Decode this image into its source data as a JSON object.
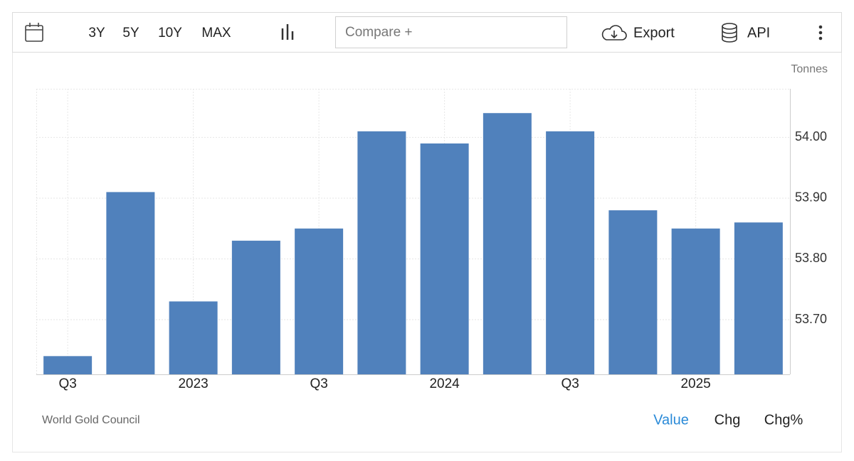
{
  "toolbar": {
    "ranges": [
      "3Y",
      "5Y",
      "10Y",
      "MAX"
    ],
    "compare": "Compare +",
    "export": "Export",
    "api": "API"
  },
  "chart_data": {
    "type": "bar",
    "unit": "Tonnes",
    "categories": [
      "Q3",
      null,
      "2023",
      null,
      "Q3",
      null,
      "2024",
      null,
      "Q3",
      null,
      "2025",
      null
    ],
    "values": [
      53.64,
      53.91,
      53.73,
      53.83,
      53.85,
      54.01,
      53.99,
      54.04,
      54.01,
      53.88,
      53.85,
      53.86
    ],
    "color": "#5081bc",
    "ylim": [
      53.61,
      54.08
    ],
    "yticks": [
      {
        "value": 53.7,
        "label": "53.70"
      },
      {
        "value": 53.8,
        "label": "53.80"
      },
      {
        "value": 53.9,
        "label": "53.90"
      },
      {
        "value": 54.0,
        "label": "54.00"
      }
    ],
    "grid": true,
    "source": "World Gold Council"
  },
  "footer": {
    "tabs": [
      "Value",
      "Chg",
      "Chg%"
    ]
  }
}
